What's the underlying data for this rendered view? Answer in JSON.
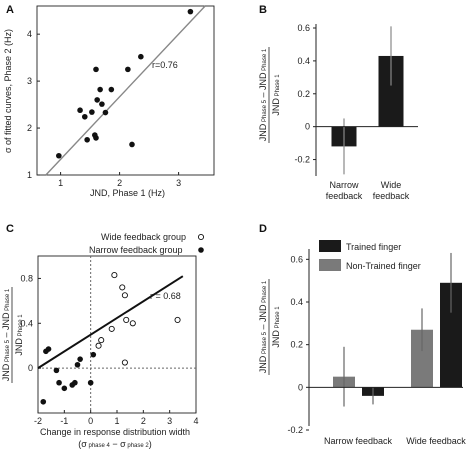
{
  "chart_data": [
    {
      "panel": "A",
      "type": "scatter",
      "xlabel": "JND, Phase 1 (Hz)",
      "ylabel": "σ of fitted curves, Phase 2 (Hz)",
      "xlim": [
        0.6,
        3.6
      ],
      "ylim": [
        1.0,
        4.6
      ],
      "xticks": [
        "1",
        "2",
        "3"
      ],
      "yticks": [
        "1",
        "2",
        "3",
        "4"
      ],
      "annotation": "r=0.76",
      "points": [
        {
          "x": 0.97,
          "y": 1.41
        },
        {
          "x": 1.33,
          "y": 2.38
        },
        {
          "x": 1.41,
          "y": 2.24
        },
        {
          "x": 1.45,
          "y": 1.75
        },
        {
          "x": 1.53,
          "y": 2.34
        },
        {
          "x": 1.58,
          "y": 1.85
        },
        {
          "x": 1.6,
          "y": 1.79
        },
        {
          "x": 1.62,
          "y": 2.6
        },
        {
          "x": 1.6,
          "y": 3.25
        },
        {
          "x": 1.67,
          "y": 2.82
        },
        {
          "x": 1.7,
          "y": 2.51
        },
        {
          "x": 1.76,
          "y": 2.33
        },
        {
          "x": 1.86,
          "y": 2.82
        },
        {
          "x": 2.14,
          "y": 3.25
        },
        {
          "x": 2.21,
          "y": 1.65
        },
        {
          "x": 2.36,
          "y": 3.52
        },
        {
          "x": 3.2,
          "y": 4.48
        }
      ],
      "fit_line": [
        {
          "x": 0.75,
          "y": 1.0
        },
        {
          "x": 3.45,
          "y": 4.6
        }
      ]
    },
    {
      "panel": "B",
      "type": "bar",
      "ylabel": "JND Phase 5 − JND Phase 1 / JND Phase 1",
      "categories": [
        "Narrow feedback",
        "Wide feedback"
      ],
      "values": [
        -0.12,
        0.43
      ],
      "errors": [
        0.17,
        0.18
      ],
      "ylim": [
        -0.3,
        0.6
      ],
      "yticks": [
        "-0.2",
        "0",
        "0.2",
        "0.4",
        "0.6"
      ]
    },
    {
      "panel": "C",
      "type": "scatter",
      "xlabel": "Change in response distribution width",
      "xlabel2": "(σ phase 4 − σ phase 2)",
      "ylabel": "JND Phase 5 − JND Phase 1 / JND Phase 1",
      "xlim": [
        -2,
        4
      ],
      "ylim": [
        -0.4,
        1.0
      ],
      "xticks": [
        "-2",
        "-1",
        "0",
        "1",
        "2",
        "3",
        "4"
      ],
      "yticks": [
        "0",
        "0.4",
        "0.8"
      ],
      "annotation": "r = 0.68",
      "legend": [
        "Wide feedback group",
        "Narrow feedback group"
      ],
      "series": [
        {
          "name": "Wide feedback group",
          "points": [
            {
              "x": 0.3,
              "y": 0.2
            },
            {
              "x": 0.4,
              "y": 0.25
            },
            {
              "x": 0.8,
              "y": 0.35
            },
            {
              "x": 1.2,
              "y": 0.72
            },
            {
              "x": 1.3,
              "y": 0.65
            },
            {
              "x": 1.3,
              "y": 0.05
            },
            {
              "x": 1.6,
              "y": 0.4
            },
            {
              "x": 3.3,
              "y": 0.43
            },
            {
              "x": 0.9,
              "y": 0.83
            },
            {
              "x": 1.35,
              "y": 0.43
            }
          ]
        },
        {
          "name": "Narrow feedback group",
          "points": [
            {
              "x": -1.8,
              "y": -0.3
            },
            {
              "x": -1.6,
              "y": 0.17
            },
            {
              "x": -1.2,
              "y": -0.13
            },
            {
              "x": -1.3,
              "y": -0.02
            },
            {
              "x": -1.0,
              "y": -0.18
            },
            {
              "x": -0.7,
              "y": -0.15
            },
            {
              "x": -0.6,
              "y": -0.13
            },
            {
              "x": -0.5,
              "y": 0.03
            },
            {
              "x": 0.0,
              "y": -0.13
            },
            {
              "x": -1.7,
              "y": 0.15
            },
            {
              "x": -0.4,
              "y": 0.08
            },
            {
              "x": 0.1,
              "y": 0.12
            }
          ]
        }
      ],
      "fit_line": [
        {
          "x": -2.0,
          "y": 0.0
        },
        {
          "x": 3.5,
          "y": 0.82
        }
      ]
    },
    {
      "panel": "D",
      "type": "bar",
      "ylabel": "JND Phase 5 − JND Phase 1 / JND Phase 1",
      "categories": [
        "Narrow feedback",
        "Wide feedback"
      ],
      "legend": [
        "Trained finger",
        "Non-Trained finger"
      ],
      "series": [
        {
          "name": "Non-Trained finger",
          "values": [
            0.05,
            0.27
          ],
          "errors": [
            0.14,
            0.1
          ],
          "color": "#7a7a7a"
        },
        {
          "name": "Trained finger",
          "values": [
            -0.04,
            0.49
          ],
          "errors": [
            0.04,
            0.14
          ],
          "color": "#1a1a1a"
        }
      ],
      "ylim": [
        -0.2,
        0.7
      ],
      "yticks": [
        "-0.2",
        "0",
        "0.2",
        "0.4",
        "0.6"
      ]
    }
  ]
}
